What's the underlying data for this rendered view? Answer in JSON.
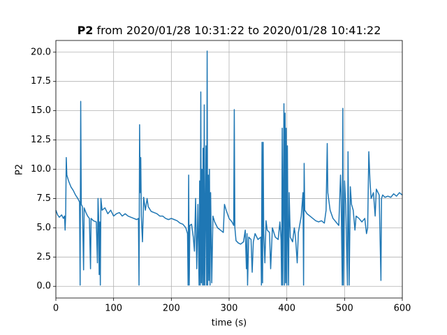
{
  "chart_data": {
    "type": "line",
    "title": {
      "bold": "P2",
      "text": "from 2020/01/28 10:31:22 to 2020/01/28 10:41:22"
    },
    "xlabel": "time (s)",
    "ylabel": "P2",
    "color": "#1f77b4",
    "grid": true,
    "xlim": [
      0,
      600
    ],
    "xticks": [
      0,
      100,
      200,
      300,
      400,
      500,
      600
    ],
    "ylim": [
      -1.0,
      21.0
    ],
    "yticks": [
      {
        "value": 0,
        "label": "0.0"
      },
      2.5,
      {
        "value": 5,
        "label": "5.0"
      },
      7.5,
      {
        "value": 10,
        "label": "10.0"
      },
      12.5,
      {
        "value": 15,
        "label": "15.0"
      },
      17.5,
      {
        "value": 20,
        "label": "20.0"
      }
    ],
    "x": [
      0,
      3,
      6,
      10,
      13,
      15,
      16,
      17,
      18,
      19,
      22,
      26,
      30,
      34,
      38,
      41,
      42,
      43,
      44,
      46,
      48,
      49,
      52,
      55,
      58,
      60,
      61,
      65,
      70,
      72,
      73,
      74,
      75,
      76,
      77,
      78,
      80,
      85,
      90,
      95,
      100,
      105,
      110,
      115,
      120,
      125,
      130,
      135,
      140,
      143,
      144,
      145,
      146,
      147,
      148,
      150,
      152,
      155,
      158,
      160,
      165,
      170,
      175,
      180,
      185,
      190,
      195,
      200,
      205,
      210,
      215,
      220,
      225,
      228,
      229,
      230,
      231,
      232,
      235,
      238,
      240,
      242,
      244,
      246,
      248,
      249,
      250,
      251,
      252,
      253,
      254,
      255,
      256,
      257,
      258,
      260,
      261,
      262,
      263,
      264,
      265,
      266,
      267,
      268,
      270,
      272,
      275,
      280,
      285,
      290,
      292,
      295,
      300,
      305,
      308,
      309,
      310,
      312,
      316,
      320,
      325,
      328,
      330,
      331,
      332,
      334,
      338,
      340,
      342,
      345,
      350,
      355,
      356,
      357,
      358,
      359,
      360,
      362,
      364,
      366,
      370,
      372,
      375,
      380,
      385,
      388,
      390,
      391,
      392,
      393,
      395,
      396,
      397,
      398,
      399,
      400,
      401,
      402,
      403,
      404,
      406,
      410,
      413,
      415,
      418,
      420,
      425,
      428,
      429,
      430,
      431,
      435,
      440,
      445,
      450,
      455,
      460,
      465,
      468,
      470,
      471,
      475,
      480,
      485,
      490,
      493,
      494,
      496,
      497,
      498,
      500,
      502,
      505,
      506,
      508,
      510,
      512,
      515,
      518,
      520,
      525,
      530,
      535,
      538,
      540,
      542,
      544,
      546,
      550,
      553,
      555,
      560,
      563,
      564,
      566,
      570,
      575,
      580,
      585,
      590,
      595,
      600
    ],
    "values": [
      6.5,
      6.1,
      5.9,
      6.1,
      5.8,
      6.0,
      4.8,
      6.2,
      11.0,
      9.5,
      9.0,
      8.5,
      8.2,
      7.8,
      7.5,
      7.2,
      0.1,
      15.8,
      7.0,
      6.8,
      1.4,
      6.7,
      6.3,
      6.0,
      5.8,
      1.5,
      5.8,
      5.6,
      5.5,
      2.0,
      7.5,
      6.0,
      1.0,
      5.5,
      0.1,
      7.5,
      6.5,
      6.7,
      6.2,
      6.5,
      6.0,
      6.2,
      6.3,
      6.0,
      6.2,
      6.0,
      5.9,
      5.8,
      5.7,
      5.8,
      0.1,
      13.8,
      8.0,
      11.0,
      6.0,
      3.8,
      7.6,
      6.5,
      7.5,
      6.8,
      6.4,
      6.3,
      6.2,
      6.0,
      6.0,
      5.8,
      5.7,
      5.8,
      5.7,
      5.6,
      5.4,
      5.3,
      5.0,
      4.5,
      0.1,
      9.5,
      0.1,
      5.2,
      5.3,
      4.2,
      3.0,
      7.5,
      1.5,
      7.0,
      0.1,
      9.0,
      0.1,
      16.6,
      0.3,
      10.0,
      0.1,
      11.8,
      0.1,
      15.5,
      0.1,
      12.0,
      0.1,
      20.1,
      0.1,
      9.5,
      0.5,
      10.0,
      0.1,
      8.0,
      0.3,
      6.0,
      5.5,
      5.0,
      4.8,
      4.6,
      7.0,
      6.5,
      5.8,
      5.5,
      5.2,
      15.1,
      5.0,
      3.9,
      3.7,
      3.6,
      3.8,
      4.8,
      1.5,
      4.5,
      0.1,
      4.2,
      4.0,
      1.2,
      3.8,
      4.5,
      4.0,
      4.2,
      0.1,
      12.3,
      0.3,
      12.3,
      4.5,
      2.0,
      5.6,
      4.8,
      4.6,
      1.5,
      5.0,
      4.2,
      4.0,
      5.5,
      4.0,
      0.1,
      13.5,
      0.1,
      15.6,
      0.1,
      14.8,
      0.3,
      13.5,
      0.1,
      12.0,
      4.5,
      0.1,
      8.0,
      4.2,
      3.8,
      5.0,
      4.2,
      2.0,
      4.6,
      6.0,
      8.0,
      0.1,
      10.5,
      6.5,
      6.2,
      6.0,
      5.8,
      5.6,
      5.5,
      5.6,
      5.4,
      6.5,
      12.2,
      8.0,
      6.5,
      5.8,
      5.5,
      5.2,
      9.5,
      8.0,
      0.1,
      15.2,
      0.1,
      9.0,
      7.0,
      0.1,
      11.5,
      0.1,
      8.5,
      7.0,
      6.5,
      4.8,
      6.0,
      5.8,
      5.5,
      5.8,
      4.5,
      5.0,
      11.5,
      9.0,
      7.5,
      8.0,
      6.0,
      8.3,
      7.8,
      0.5,
      7.5,
      7.8,
      7.6,
      7.7,
      7.6,
      7.9,
      7.7,
      8.0,
      7.8
    ]
  }
}
